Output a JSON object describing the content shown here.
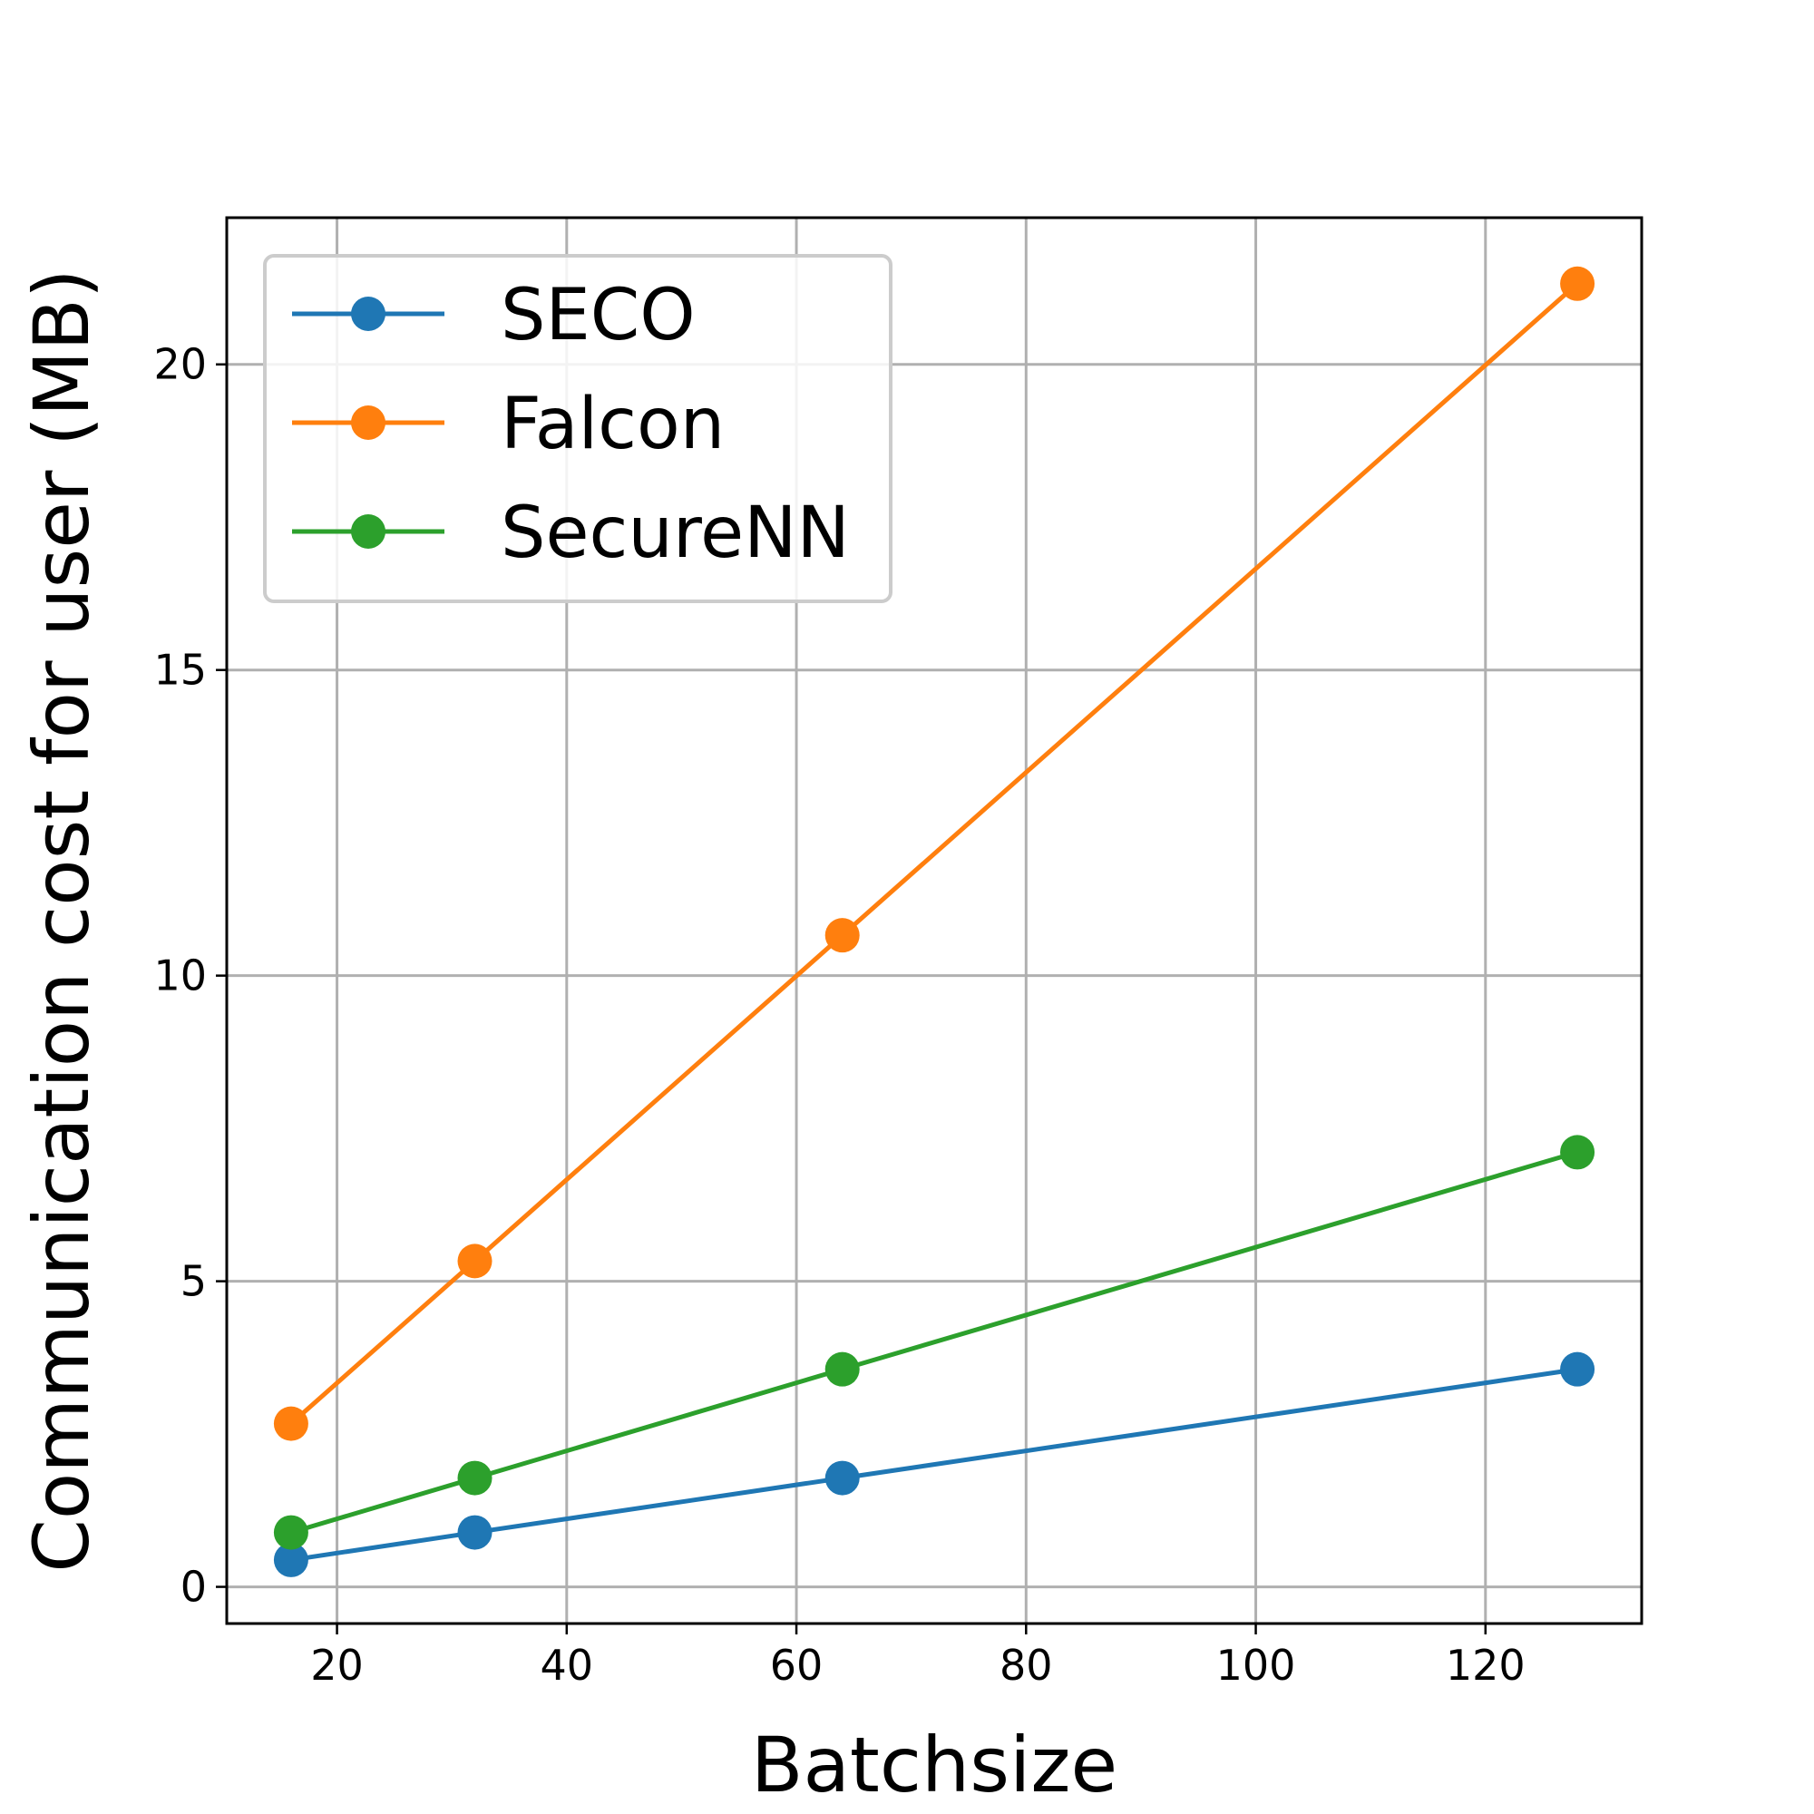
{
  "chart_data": {
    "type": "line",
    "x": [
      16,
      32,
      64,
      128
    ],
    "series": [
      {
        "name": "SECO",
        "values": [
          0.44,
          0.89,
          1.78,
          3.56
        ],
        "color": "#1f77b4"
      },
      {
        "name": "Falcon",
        "values": [
          2.67,
          5.33,
          10.66,
          21.32
        ],
        "color": "#ff7f0e"
      },
      {
        "name": "SecureNN",
        "values": [
          0.89,
          1.78,
          3.56,
          7.11
        ],
        "color": "#2ca02c"
      }
    ],
    "title": "",
    "xlabel": "Batchsize",
    "ylabel": "Communication cost for user (MB)",
    "xlim": [
      10.4,
      133.6
    ],
    "ylim": [
      -0.6,
      22.4
    ],
    "xticks": [
      20,
      40,
      60,
      80,
      100,
      120
    ],
    "yticks": [
      0,
      5,
      10,
      15,
      20
    ],
    "grid": true,
    "legend_position": "top-left"
  }
}
